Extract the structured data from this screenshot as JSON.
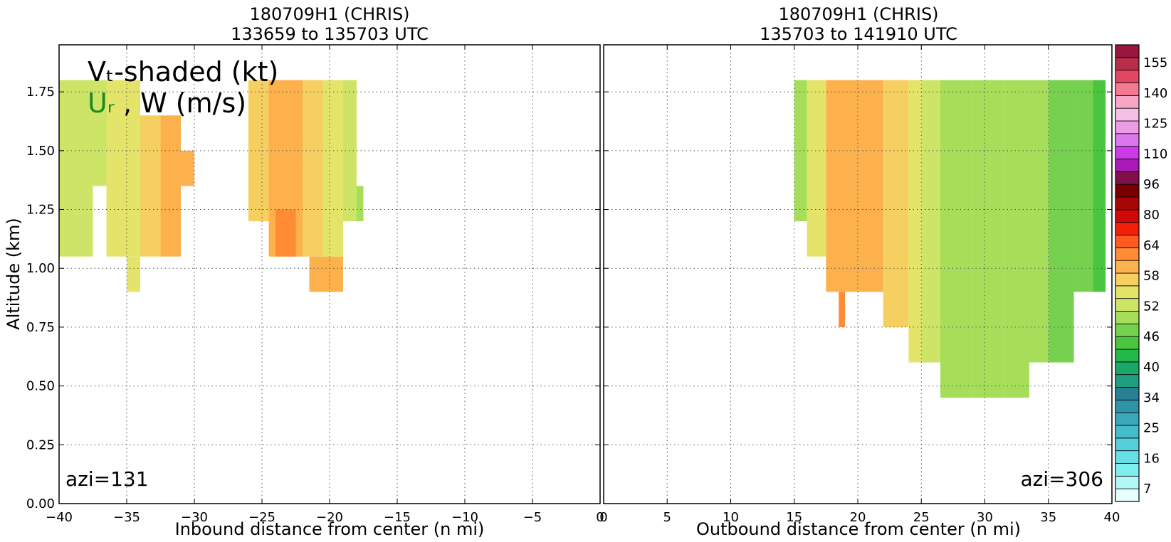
{
  "chart_data": {
    "type": "heatmap",
    "panels": [
      {
        "title_line1": "180709H1 (CHRIS)",
        "title_line2": "133659 to 135703 UTC",
        "xlabel": "Inbound distance from center (n mi)",
        "ylabel": "Altitude (km)",
        "xlim": [
          -40,
          0
        ],
        "ylim": [
          0,
          1.95
        ],
        "xticks": [
          -40,
          -35,
          -30,
          -25,
          -20,
          -15,
          -10,
          -5,
          0
        ],
        "xtick_labels": [
          "−40",
          "−35",
          "−30",
          "−25",
          "−20",
          "−15",
          "−10",
          "−5",
          "0"
        ],
        "yticks": [
          0,
          0.25,
          0.5,
          0.75,
          1.0,
          1.25,
          1.5,
          1.75
        ],
        "ytick_labels": [
          "0.00",
          "0.25",
          "0.50",
          "0.75",
          "1.00",
          "1.25",
          "1.50",
          "1.75"
        ],
        "grid": true,
        "azimuth_label": "azi=131",
        "annotation_line1": "Vₜ-shaded (kt)",
        "annotation_line2_ur": "Uᵣ",
        "annotation_line2_rest": ", W (m/s)",
        "shaded_regions": [
          {
            "x0": -40,
            "x1": -37.5,
            "y0": 1.05,
            "y1": 1.35,
            "value": 46
          },
          {
            "x0": -40,
            "x1": -36.5,
            "y0": 1.35,
            "y1": 1.8,
            "value": 46
          },
          {
            "x0": -36.5,
            "x1": -34,
            "y0": 1.05,
            "y1": 1.8,
            "value": 49
          },
          {
            "x0": -35,
            "x1": -34,
            "y0": 0.9,
            "y1": 1.05,
            "value": 49
          },
          {
            "x0": -34,
            "x1": -32.5,
            "y0": 1.05,
            "y1": 1.65,
            "value": 52
          },
          {
            "x0": -32.5,
            "x1": -31,
            "y0": 1.05,
            "y1": 1.65,
            "value": 55
          },
          {
            "x0": -31,
            "x1": -30,
            "y0": 1.35,
            "y1": 1.5,
            "value": 55
          },
          {
            "x0": -26,
            "x1": -24.5,
            "y0": 1.2,
            "y1": 1.8,
            "value": 52
          },
          {
            "x0": -24.5,
            "x1": -22,
            "y0": 1.05,
            "y1": 1.8,
            "value": 55
          },
          {
            "x0": -24,
            "x1": -22.5,
            "y0": 1.05,
            "y1": 1.25,
            "value": 58
          },
          {
            "x0": -22,
            "x1": -20.5,
            "y0": 1.05,
            "y1": 1.8,
            "value": 52
          },
          {
            "x0": -21.5,
            "x1": -19,
            "y0": 0.9,
            "y1": 1.05,
            "value": 55
          },
          {
            "x0": -20.5,
            "x1": -19,
            "y0": 1.05,
            "y1": 1.8,
            "value": 49
          },
          {
            "x0": -19,
            "x1": -18,
            "y0": 1.2,
            "y1": 1.8,
            "value": 46
          },
          {
            "x0": -18,
            "x1": -17.5,
            "y0": 1.2,
            "y1": 1.35,
            "value": 43
          }
        ]
      },
      {
        "title_line1": "180709H1 (CHRIS)",
        "title_line2": "135703 to 141910 UTC",
        "xlabel": "Outbound distance from center (n mi)",
        "xlim": [
          0,
          40
        ],
        "ylim": [
          0,
          1.95
        ],
        "xticks": [
          0,
          5,
          10,
          15,
          20,
          25,
          30,
          35,
          40
        ],
        "xtick_labels": [
          "0",
          "5",
          "10",
          "15",
          "20",
          "25",
          "30",
          "35",
          "40"
        ],
        "grid": true,
        "azimuth_label": "azi=306",
        "shaded_regions": [
          {
            "x0": 15,
            "x1": 16,
            "y0": 1.2,
            "y1": 1.8,
            "value": 43
          },
          {
            "x0": 16,
            "x1": 17.5,
            "y0": 1.05,
            "y1": 1.8,
            "value": 49
          },
          {
            "x0": 17.5,
            "x1": 20,
            "y0": 0.9,
            "y1": 1.8,
            "value": 55
          },
          {
            "x0": 18.5,
            "x1": 19,
            "y0": 0.75,
            "y1": 0.9,
            "value": 58
          },
          {
            "x0": 20,
            "x1": 22,
            "y0": 0.9,
            "y1": 1.8,
            "value": 55
          },
          {
            "x0": 22,
            "x1": 24,
            "y0": 0.75,
            "y1": 1.8,
            "value": 52
          },
          {
            "x0": 24,
            "x1": 25,
            "y0": 0.6,
            "y1": 1.8,
            "value": 49
          },
          {
            "x0": 25,
            "x1": 26.5,
            "y0": 0.6,
            "y1": 1.8,
            "value": 46
          },
          {
            "x0": 26.5,
            "x1": 29,
            "y0": 0.45,
            "y1": 1.8,
            "value": 43
          },
          {
            "x0": 29,
            "x1": 31.5,
            "y0": 0.45,
            "y1": 1.8,
            "value": 43
          },
          {
            "x0": 31.5,
            "x1": 33.5,
            "y0": 0.45,
            "y1": 1.8,
            "value": 43
          },
          {
            "x0": 33.5,
            "x1": 35,
            "y0": 0.6,
            "y1": 1.8,
            "value": 43
          },
          {
            "x0": 35,
            "x1": 37,
            "y0": 0.6,
            "y1": 1.8,
            "value": 40
          },
          {
            "x0": 37,
            "x1": 38.5,
            "y0": 0.9,
            "y1": 1.8,
            "value": 40
          },
          {
            "x0": 38.5,
            "x1": 39.5,
            "y0": 0.9,
            "y1": 1.8,
            "value": 37
          }
        ]
      }
    ],
    "colorbar": {
      "tick_labels": [
        "7",
        "16",
        "25",
        "34",
        "40",
        "46",
        "52",
        "58",
        "64",
        "80",
        "96",
        "110",
        "125",
        "140",
        "155"
      ],
      "tick_values": [
        7,
        16,
        25,
        34,
        40,
        46,
        52,
        58,
        64,
        80,
        96,
        110,
        125,
        140,
        155
      ],
      "levels": [
        4,
        7,
        10,
        13,
        16,
        19,
        22,
        25,
        28,
        31,
        34,
        37,
        40,
        43,
        46,
        49,
        52,
        55,
        58,
        61,
        64,
        72,
        80,
        88,
        96,
        103,
        110,
        118,
        125,
        133,
        140,
        148,
        155,
        160
      ],
      "colors": [
        "#e6ffff",
        "#b3f7f7",
        "#80eef0",
        "#66e0e6",
        "#55cfd9",
        "#45bccb",
        "#3aa8bb",
        "#3094a8",
        "#288094",
        "#1f9e80",
        "#1aa868",
        "#22b84a",
        "#49c53f",
        "#76d24e",
        "#a6de5a",
        "#cde566",
        "#e5e46a",
        "#f5d060",
        "#fdb14c",
        "#ff8c35",
        "#ff5a1f",
        "#f21f0a",
        "#d10808",
        "#a80606",
        "#7a0000",
        "#80104a",
        "#aa1ab8",
        "#cc3aea",
        "#dd77ee",
        "#ee9be6",
        "#f7bfe6",
        "#f9a6c6",
        "#f47a92",
        "#e24660",
        "#b82d4a",
        "#9a163f"
      ]
    }
  }
}
